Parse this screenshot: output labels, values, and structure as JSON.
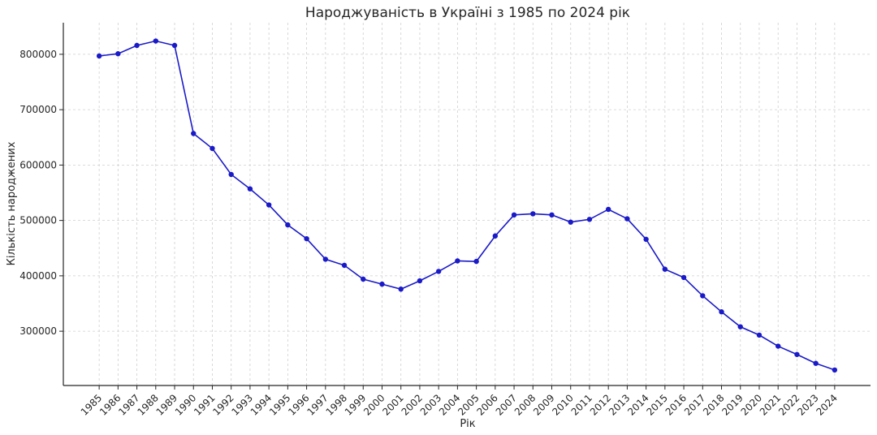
{
  "chart_data": {
    "type": "line",
    "title": "Народжуваність в Україні з 1985 по 2024 рік",
    "xlabel": "Рік",
    "ylabel": "Кількість народжених",
    "x": [
      1985,
      1986,
      1987,
      1988,
      1989,
      1990,
      1991,
      1992,
      1993,
      1994,
      1995,
      1996,
      1997,
      1998,
      1999,
      2000,
      2001,
      2002,
      2003,
      2004,
      2005,
      2006,
      2007,
      2008,
      2009,
      2010,
      2011,
      2012,
      2013,
      2014,
      2015,
      2016,
      2017,
      2018,
      2019,
      2020,
      2021,
      2022,
      2023,
      2024
    ],
    "series": [
      {
        "values": [
          797000,
          801000,
          816000,
          824000,
          816000,
          657000,
          630000,
          583000,
          557000,
          528000,
          492000,
          467000,
          430000,
          419000,
          394000,
          385000,
          376000,
          391000,
          408000,
          427000,
          426000,
          472000,
          510000,
          512000,
          510000,
          497000,
          502000,
          520000,
          503000,
          466000,
          412000,
          397000,
          364000,
          335000,
          308000,
          293000,
          273000,
          258000,
          242000,
          230000
        ],
        "color": "#1a1ac8"
      }
    ],
    "xlim": [
      1983.1,
      2025.9
    ],
    "ylim": [
      202000,
      857000
    ],
    "yticks": [
      300000,
      400000,
      500000,
      600000,
      700000,
      800000
    ],
    "grid": true
  }
}
